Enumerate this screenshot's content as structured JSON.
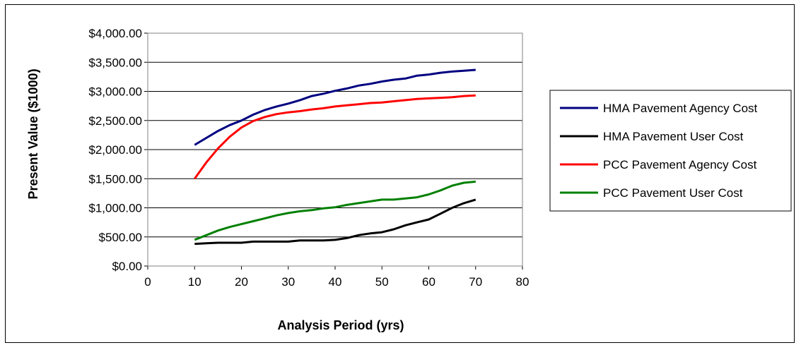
{
  "chart_data": {
    "type": "line",
    "title": "",
    "xlabel": "Analysis Period (yrs)",
    "ylabel": "Present Value ($1000)",
    "xlim": [
      0,
      80
    ],
    "ylim": [
      0,
      4000
    ],
    "x_ticks": [
      0,
      10,
      20,
      30,
      40,
      50,
      60,
      70,
      80
    ],
    "x_tick_labels": [
      "0",
      "10",
      "20",
      "30",
      "40",
      "50",
      "60",
      "70",
      "80"
    ],
    "y_ticks": [
      0,
      500,
      1000,
      1500,
      2000,
      2500,
      3000,
      3500,
      4000
    ],
    "y_tick_labels": [
      "$0.00",
      "$500.00",
      "$1,000.00",
      "$1,500.00",
      "$2,000.00",
      "$2,500.00",
      "$3,000.00",
      "$3,500.00",
      "$4,000.00"
    ],
    "grid": "horizontal",
    "legend_position": "right",
    "series": [
      {
        "name": "HMA Pavement Agency Cost",
        "color": "#000080",
        "x": [
          10,
          12.5,
          15,
          17.5,
          20,
          22.5,
          25,
          27.5,
          30,
          32.5,
          35,
          37.5,
          40,
          42.5,
          45,
          47.5,
          50,
          52.5,
          55,
          57.5,
          60,
          62.5,
          65,
          67.5,
          70
        ],
        "values": [
          2080,
          2200,
          2320,
          2420,
          2500,
          2600,
          2680,
          2740,
          2790,
          2850,
          2920,
          2960,
          3010,
          3050,
          3100,
          3130,
          3170,
          3200,
          3220,
          3270,
          3290,
          3320,
          3340,
          3355,
          3370
        ]
      },
      {
        "name": "HMA Pavement User Cost",
        "color": "#000000",
        "x": [
          10,
          12.5,
          15,
          17.5,
          20,
          22.5,
          25,
          27.5,
          30,
          32.5,
          35,
          37.5,
          40,
          42.5,
          45,
          47.5,
          50,
          52.5,
          55,
          57.5,
          60,
          62.5,
          65,
          67.5,
          70
        ],
        "values": [
          380,
          390,
          400,
          400,
          400,
          420,
          420,
          420,
          420,
          440,
          440,
          440,
          450,
          480,
          530,
          560,
          580,
          630,
          700,
          750,
          800,
          900,
          1000,
          1080,
          1140
        ]
      },
      {
        "name": "PCC Pavement Agency Cost",
        "color": "#ff0000",
        "x": [
          10,
          12.5,
          15,
          17.5,
          20,
          22.5,
          25,
          27.5,
          30,
          32.5,
          35,
          37.5,
          40,
          42.5,
          45,
          47.5,
          50,
          52.5,
          55,
          57.5,
          60,
          62.5,
          65,
          67.5,
          70
        ],
        "values": [
          1500,
          1780,
          2020,
          2220,
          2380,
          2490,
          2560,
          2610,
          2640,
          2660,
          2690,
          2710,
          2740,
          2760,
          2780,
          2800,
          2810,
          2830,
          2850,
          2870,
          2880,
          2890,
          2900,
          2920,
          2930
        ]
      },
      {
        "name": "PCC Pavement User Cost",
        "color": "#008000",
        "x": [
          10,
          12.5,
          15,
          17.5,
          20,
          22.5,
          25,
          27.5,
          30,
          32.5,
          35,
          37.5,
          40,
          42.5,
          45,
          47.5,
          50,
          52.5,
          55,
          57.5,
          60,
          62.5,
          65,
          67.5,
          70
        ],
        "values": [
          450,
          530,
          610,
          670,
          720,
          770,
          820,
          870,
          910,
          940,
          960,
          990,
          1010,
          1050,
          1080,
          1110,
          1140,
          1140,
          1160,
          1180,
          1230,
          1300,
          1380,
          1430,
          1450
        ]
      }
    ]
  }
}
